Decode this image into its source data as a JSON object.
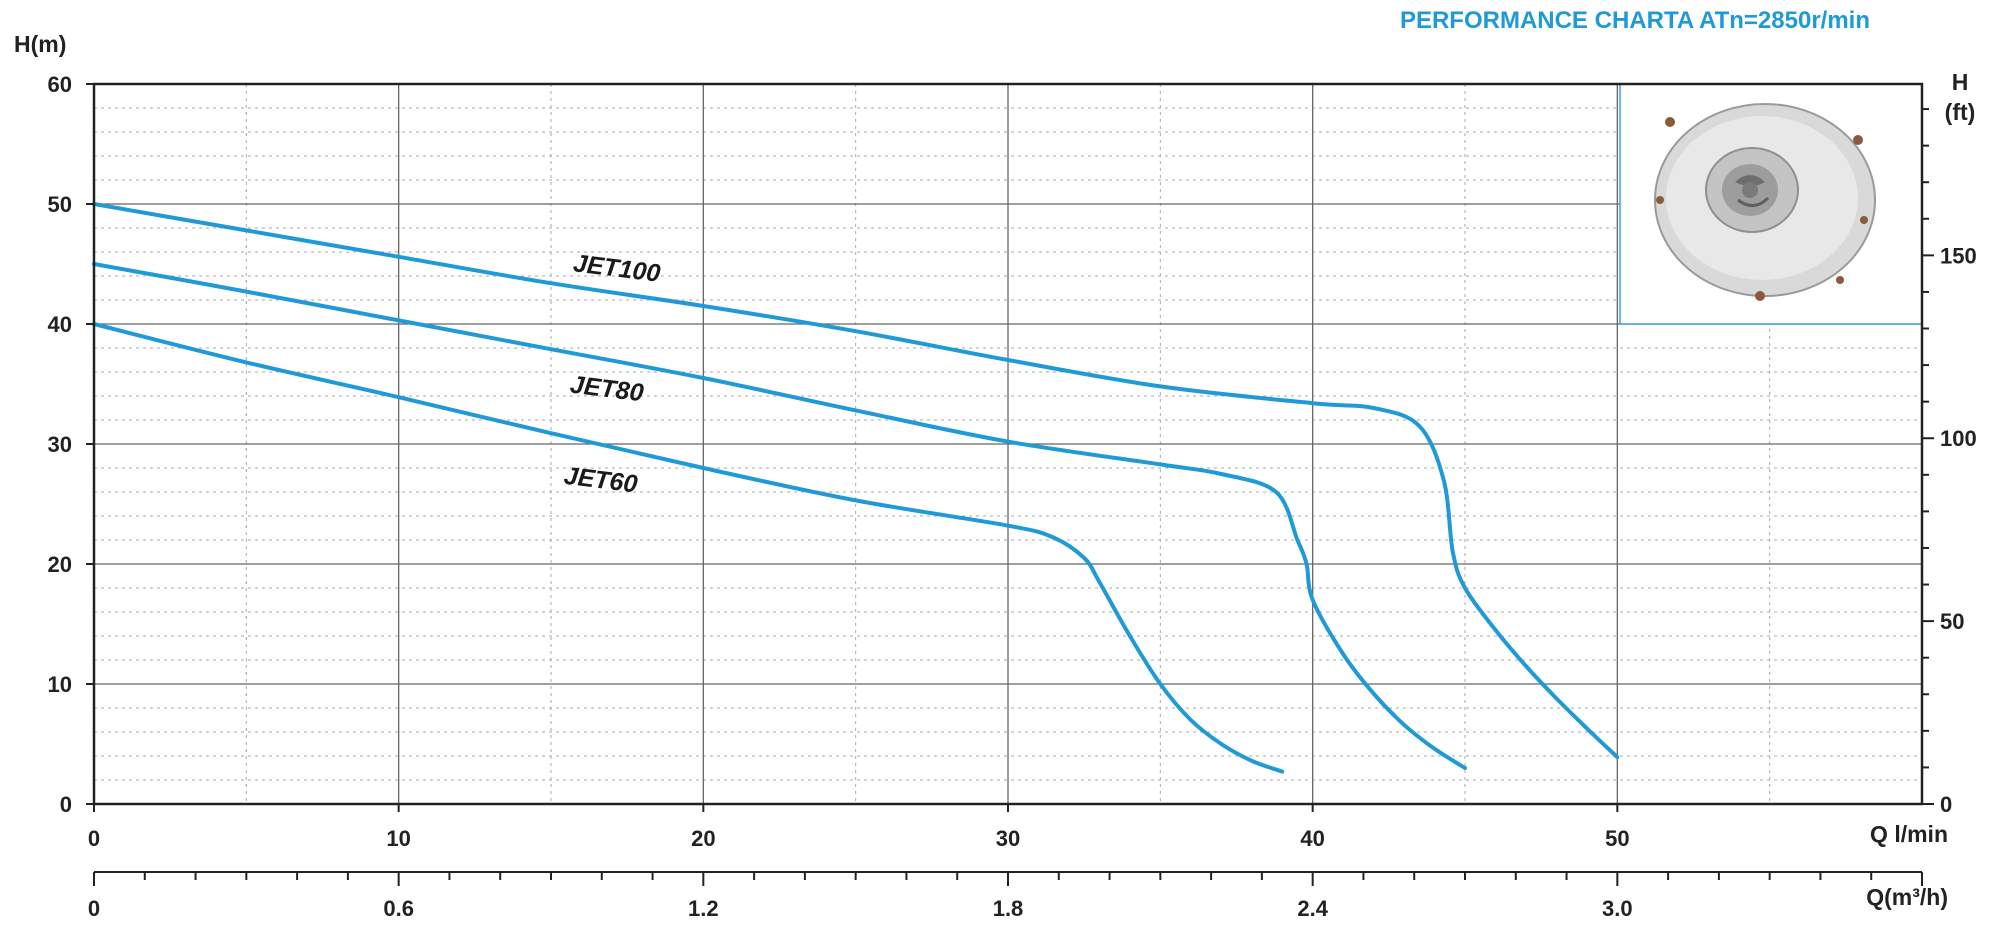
{
  "chart_data": {
    "type": "line",
    "title": "PERFORMANCE CHARTA ATn=2850r/min",
    "xlabel": "Q l/min",
    "ylabel": "H(m)",
    "y2label_line1": "H",
    "y2label_line2": "(ft)",
    "x2label": "Q(m³/h)",
    "xlim": [
      0,
      60
    ],
    "ylim": [
      0,
      60
    ],
    "grid": true,
    "x_ticks": [
      0,
      10,
      20,
      30,
      40,
      50
    ],
    "x_tick_labels": [
      "0",
      "10",
      "20",
      "30",
      "40",
      "50"
    ],
    "y_ticks": [
      0,
      10,
      20,
      30,
      40,
      50,
      60
    ],
    "y_tick_labels": [
      "0",
      "10",
      "20",
      "30",
      "40",
      "50",
      "60"
    ],
    "y2_ticks_ft": [
      0,
      50,
      100,
      150
    ],
    "y2_tick_labels": [
      "0",
      "50",
      "100",
      "150"
    ],
    "x2_ticks": [
      0,
      0.6,
      1.2,
      1.8,
      2.4,
      3.0
    ],
    "x2_tick_labels": [
      "0",
      "0.6",
      "1.2",
      "1.8",
      "2.4",
      "3.0"
    ],
    "series": [
      {
        "name": "JET100",
        "x": [
          0,
          5,
          10,
          15,
          20,
          25,
          30,
          35,
          40,
          42,
          43.5,
          44.3,
          44.6,
          45,
          46,
          47,
          48,
          49,
          50
        ],
        "y": [
          50,
          47.8,
          45.6,
          43.4,
          41.5,
          39.4,
          37,
          34.8,
          33.4,
          33,
          31.5,
          27,
          21,
          18,
          14.5,
          11.5,
          8.8,
          6.3,
          3.9
        ],
        "label_x": 15.7,
        "label_y": 44.4
      },
      {
        "name": "JET80",
        "x": [
          0,
          5,
          10,
          15,
          20,
          25,
          30,
          35,
          37,
          38.8,
          39.5,
          39.8,
          40,
          41,
          42,
          43,
          44,
          45
        ],
        "y": [
          45,
          42.7,
          40.3,
          37.9,
          35.5,
          32.8,
          30.2,
          28.3,
          27.5,
          26,
          22,
          20,
          17,
          12.5,
          9.2,
          6.6,
          4.6,
          3
        ],
        "label_x": 15.6,
        "label_y": 34.3
      },
      {
        "name": "JET60",
        "x": [
          0,
          5,
          10,
          15,
          20,
          25,
          30,
          31.5,
          32.5,
          33,
          34,
          35,
          36,
          37,
          38,
          39
        ],
        "y": [
          40,
          36.8,
          33.9,
          30.9,
          28,
          25.3,
          23.2,
          22.2,
          20.5,
          18.5,
          14,
          10,
          7,
          5,
          3.6,
          2.7
        ],
        "label_x": 15.4,
        "label_y": 26.7
      }
    ]
  },
  "colors": {
    "curve": "#1f9ad6",
    "title": "#1f9ad6",
    "grid_major": "#666666",
    "grid_minor": "#aaaaaa",
    "axis": "#222222",
    "inset_border": "#3aa0d8"
  },
  "inset": {
    "icon": "pump-impeller-photo"
  }
}
